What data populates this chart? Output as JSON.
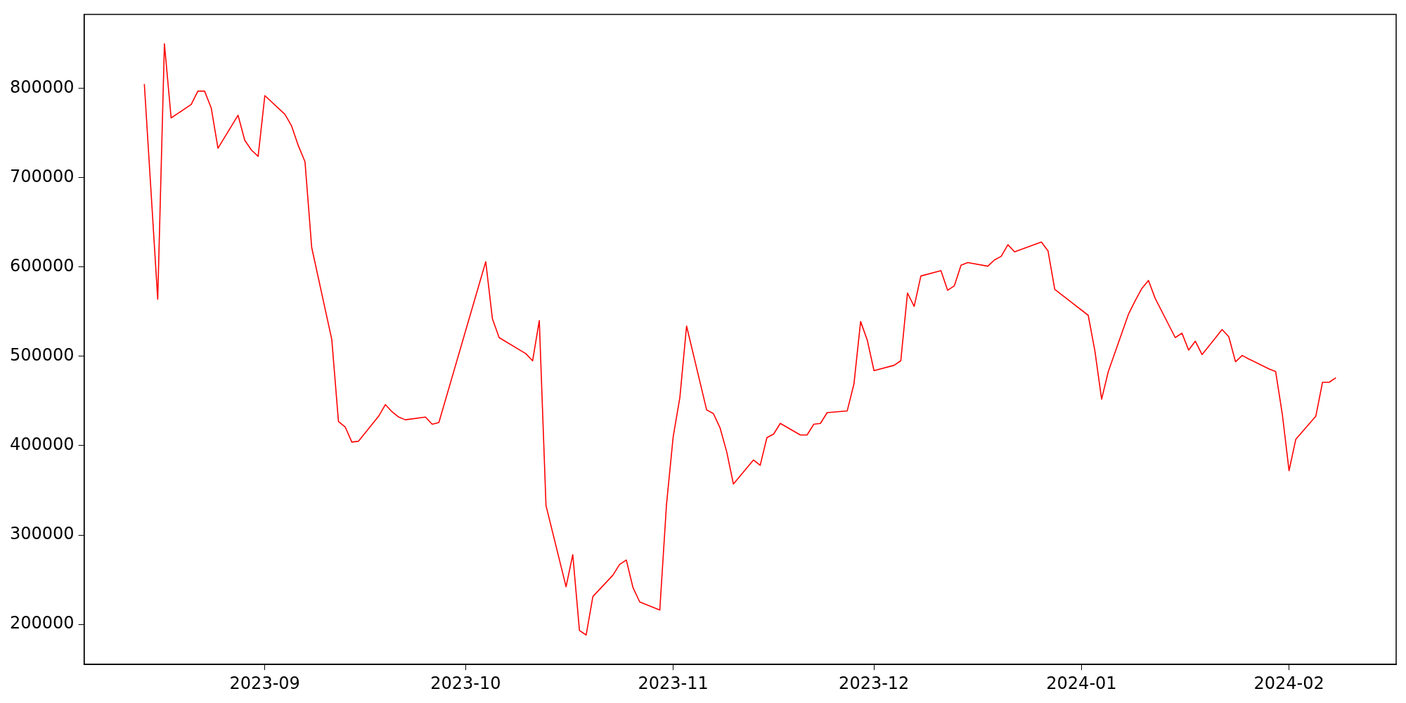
{
  "chart_data": {
    "type": "line",
    "x": [
      "2023-08-14",
      "2023-08-16",
      "2023-08-17",
      "2023-08-18",
      "2023-08-21",
      "2023-08-22",
      "2023-08-23",
      "2023-08-24",
      "2023-08-25",
      "2023-08-28",
      "2023-08-29",
      "2023-08-30",
      "2023-08-31",
      "2023-09-01",
      "2023-09-04",
      "2023-09-05",
      "2023-09-06",
      "2023-09-07",
      "2023-09-08",
      "2023-09-11",
      "2023-09-12",
      "2023-09-13",
      "2023-09-14",
      "2023-09-15",
      "2023-09-18",
      "2023-09-19",
      "2023-09-20",
      "2023-09-21",
      "2023-09-22",
      "2023-09-25",
      "2023-09-26",
      "2023-09-27",
      "2023-10-04",
      "2023-10-05",
      "2023-10-06",
      "2023-10-10",
      "2023-10-11",
      "2023-10-12",
      "2023-10-13",
      "2023-10-16",
      "2023-10-17",
      "2023-10-18",
      "2023-10-19",
      "2023-10-20",
      "2023-10-23",
      "2023-10-24",
      "2023-10-25",
      "2023-10-26",
      "2023-10-27",
      "2023-10-30",
      "2023-10-31",
      "2023-11-01",
      "2023-11-02",
      "2023-11-03",
      "2023-11-06",
      "2023-11-07",
      "2023-11-08",
      "2023-11-09",
      "2023-11-10",
      "2023-11-13",
      "2023-11-14",
      "2023-11-15",
      "2023-11-16",
      "2023-11-17",
      "2023-11-20",
      "2023-11-21",
      "2023-11-22",
      "2023-11-23",
      "2023-11-24",
      "2023-11-27",
      "2023-11-28",
      "2023-11-29",
      "2023-11-30",
      "2023-12-01",
      "2023-12-04",
      "2023-12-05",
      "2023-12-06",
      "2023-12-07",
      "2023-12-08",
      "2023-12-11",
      "2023-12-12",
      "2023-12-13",
      "2023-12-14",
      "2023-12-15",
      "2023-12-18",
      "2023-12-19",
      "2023-12-20",
      "2023-12-21",
      "2023-12-22",
      "2023-12-26",
      "2023-12-27",
      "2023-12-28",
      "2024-01-02",
      "2024-01-03",
      "2024-01-04",
      "2024-01-05",
      "2024-01-08",
      "2024-01-09",
      "2024-01-10",
      "2024-01-11",
      "2024-01-12",
      "2024-01-15",
      "2024-01-16",
      "2024-01-17",
      "2024-01-18",
      "2024-01-19",
      "2024-01-22",
      "2024-01-23",
      "2024-01-24",
      "2024-01-25",
      "2024-01-26",
      "2024-01-29",
      "2024-01-30",
      "2024-01-31",
      "2024-02-01",
      "2024-02-02",
      "2024-02-05",
      "2024-02-06",
      "2024-02-07",
      "2024-02-08"
    ],
    "series": [
      {
        "color": "#ff0000",
        "values": [
          805000,
          564000,
          850000,
          767000,
          782000,
          797000,
          797000,
          778000,
          733000,
          770000,
          742000,
          731000,
          724000,
          792000,
          771000,
          758000,
          736000,
          718000,
          622000,
          519000,
          427000,
          421000,
          404000,
          405000,
          433000,
          446000,
          438000,
          432000,
          429000,
          432000,
          424000,
          426000,
          606000,
          542000,
          521000,
          503000,
          495000,
          540000,
          333000,
          242000,
          278000,
          193000,
          188000,
          231000,
          255000,
          267000,
          272000,
          241000,
          225000,
          216000,
          334000,
          410000,
          454000,
          534000,
          440000,
          436000,
          420000,
          393000,
          357000,
          384000,
          378000,
          409000,
          413000,
          425000,
          412000,
          412000,
          424000,
          425000,
          437000,
          439000,
          469000,
          539000,
          518000,
          484000,
          490000,
          495000,
          571000,
          556000,
          590000,
          596000,
          574000,
          579000,
          602000,
          605000,
          601000,
          608000,
          612000,
          625000,
          617000,
          628000,
          618000,
          575000,
          546000,
          506000,
          452000,
          483000,
          547000,
          562000,
          576000,
          585000,
          565000,
          521000,
          526000,
          507000,
          517000,
          502000,
          530000,
          522000,
          494000,
          501000,
          497000,
          486000,
          483000,
          435000,
          372000,
          407000,
          433000,
          471000,
          471000,
          476000
        ]
      }
    ],
    "xlim": [
      "2023-08-05",
      "2024-02-17"
    ],
    "xticks": [
      {
        "value": "2023-09-01",
        "label": "2023-09"
      },
      {
        "value": "2023-10-01",
        "label": "2023-10"
      },
      {
        "value": "2023-11-01",
        "label": "2023-11"
      },
      {
        "value": "2023-12-01",
        "label": "2023-12"
      },
      {
        "value": "2024-01-01",
        "label": "2024-01"
      },
      {
        "value": "2024-02-01",
        "label": "2024-02"
      }
    ],
    "ylim": [
      155000,
      883000
    ],
    "yticks": [
      200000,
      300000,
      400000,
      500000,
      600000,
      700000,
      800000
    ],
    "grid": false,
    "legend": false,
    "marker": "none",
    "line_style": "solid"
  }
}
